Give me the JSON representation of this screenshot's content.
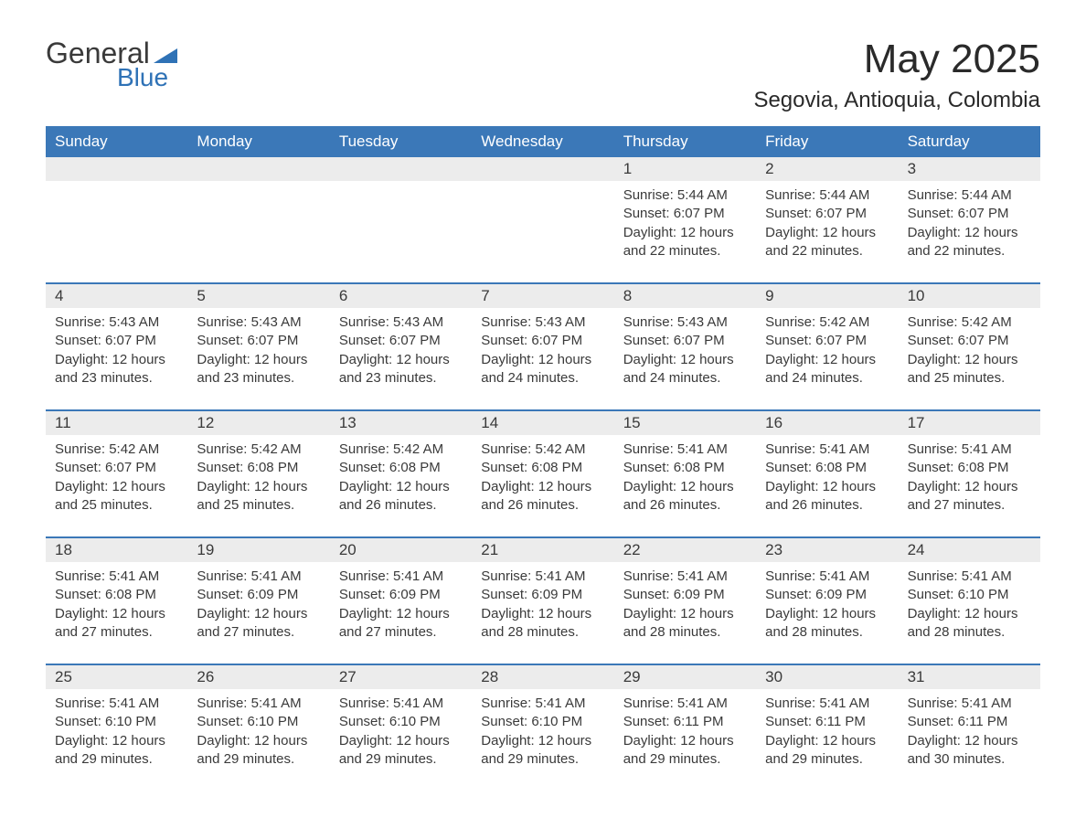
{
  "brand": {
    "general": "General",
    "blue": "Blue"
  },
  "title": "May 2025",
  "location": "Segovia, Antioquia, Colombia",
  "colors": {
    "header_bg": "#3b78b8",
    "header_text": "#ffffff",
    "daynum_bg": "#ececec",
    "week_border": "#3b78b8",
    "body_text": "#3a3a3a",
    "logo_blue": "#2f72b6",
    "page_bg": "#ffffff"
  },
  "labels": {
    "sunrise": "Sunrise:",
    "sunset": "Sunset:",
    "daylight": "Daylight:"
  },
  "day_headers": [
    "Sunday",
    "Monday",
    "Tuesday",
    "Wednesday",
    "Thursday",
    "Friday",
    "Saturday"
  ],
  "weeks": [
    [
      {
        "num": "",
        "sunrise": "",
        "sunset": "",
        "daylight": ""
      },
      {
        "num": "",
        "sunrise": "",
        "sunset": "",
        "daylight": ""
      },
      {
        "num": "",
        "sunrise": "",
        "sunset": "",
        "daylight": ""
      },
      {
        "num": "",
        "sunrise": "",
        "sunset": "",
        "daylight": ""
      },
      {
        "num": "1",
        "sunrise": "5:44 AM",
        "sunset": "6:07 PM",
        "daylight": "12 hours and 22 minutes."
      },
      {
        "num": "2",
        "sunrise": "5:44 AM",
        "sunset": "6:07 PM",
        "daylight": "12 hours and 22 minutes."
      },
      {
        "num": "3",
        "sunrise": "5:44 AM",
        "sunset": "6:07 PM",
        "daylight": "12 hours and 22 minutes."
      }
    ],
    [
      {
        "num": "4",
        "sunrise": "5:43 AM",
        "sunset": "6:07 PM",
        "daylight": "12 hours and 23 minutes."
      },
      {
        "num": "5",
        "sunrise": "5:43 AM",
        "sunset": "6:07 PM",
        "daylight": "12 hours and 23 minutes."
      },
      {
        "num": "6",
        "sunrise": "5:43 AM",
        "sunset": "6:07 PM",
        "daylight": "12 hours and 23 minutes."
      },
      {
        "num": "7",
        "sunrise": "5:43 AM",
        "sunset": "6:07 PM",
        "daylight": "12 hours and 24 minutes."
      },
      {
        "num": "8",
        "sunrise": "5:43 AM",
        "sunset": "6:07 PM",
        "daylight": "12 hours and 24 minutes."
      },
      {
        "num": "9",
        "sunrise": "5:42 AM",
        "sunset": "6:07 PM",
        "daylight": "12 hours and 24 minutes."
      },
      {
        "num": "10",
        "sunrise": "5:42 AM",
        "sunset": "6:07 PM",
        "daylight": "12 hours and 25 minutes."
      }
    ],
    [
      {
        "num": "11",
        "sunrise": "5:42 AM",
        "sunset": "6:07 PM",
        "daylight": "12 hours and 25 minutes."
      },
      {
        "num": "12",
        "sunrise": "5:42 AM",
        "sunset": "6:08 PM",
        "daylight": "12 hours and 25 minutes."
      },
      {
        "num": "13",
        "sunrise": "5:42 AM",
        "sunset": "6:08 PM",
        "daylight": "12 hours and 26 minutes."
      },
      {
        "num": "14",
        "sunrise": "5:42 AM",
        "sunset": "6:08 PM",
        "daylight": "12 hours and 26 minutes."
      },
      {
        "num": "15",
        "sunrise": "5:41 AM",
        "sunset": "6:08 PM",
        "daylight": "12 hours and 26 minutes."
      },
      {
        "num": "16",
        "sunrise": "5:41 AM",
        "sunset": "6:08 PM",
        "daylight": "12 hours and 26 minutes."
      },
      {
        "num": "17",
        "sunrise": "5:41 AM",
        "sunset": "6:08 PM",
        "daylight": "12 hours and 27 minutes."
      }
    ],
    [
      {
        "num": "18",
        "sunrise": "5:41 AM",
        "sunset": "6:08 PM",
        "daylight": "12 hours and 27 minutes."
      },
      {
        "num": "19",
        "sunrise": "5:41 AM",
        "sunset": "6:09 PM",
        "daylight": "12 hours and 27 minutes."
      },
      {
        "num": "20",
        "sunrise": "5:41 AM",
        "sunset": "6:09 PM",
        "daylight": "12 hours and 27 minutes."
      },
      {
        "num": "21",
        "sunrise": "5:41 AM",
        "sunset": "6:09 PM",
        "daylight": "12 hours and 28 minutes."
      },
      {
        "num": "22",
        "sunrise": "5:41 AM",
        "sunset": "6:09 PM",
        "daylight": "12 hours and 28 minutes."
      },
      {
        "num": "23",
        "sunrise": "5:41 AM",
        "sunset": "6:09 PM",
        "daylight": "12 hours and 28 minutes."
      },
      {
        "num": "24",
        "sunrise": "5:41 AM",
        "sunset": "6:10 PM",
        "daylight": "12 hours and 28 minutes."
      }
    ],
    [
      {
        "num": "25",
        "sunrise": "5:41 AM",
        "sunset": "6:10 PM",
        "daylight": "12 hours and 29 minutes."
      },
      {
        "num": "26",
        "sunrise": "5:41 AM",
        "sunset": "6:10 PM",
        "daylight": "12 hours and 29 minutes."
      },
      {
        "num": "27",
        "sunrise": "5:41 AM",
        "sunset": "6:10 PM",
        "daylight": "12 hours and 29 minutes."
      },
      {
        "num": "28",
        "sunrise": "5:41 AM",
        "sunset": "6:10 PM",
        "daylight": "12 hours and 29 minutes."
      },
      {
        "num": "29",
        "sunrise": "5:41 AM",
        "sunset": "6:11 PM",
        "daylight": "12 hours and 29 minutes."
      },
      {
        "num": "30",
        "sunrise": "5:41 AM",
        "sunset": "6:11 PM",
        "daylight": "12 hours and 29 minutes."
      },
      {
        "num": "31",
        "sunrise": "5:41 AM",
        "sunset": "6:11 PM",
        "daylight": "12 hours and 30 minutes."
      }
    ]
  ]
}
